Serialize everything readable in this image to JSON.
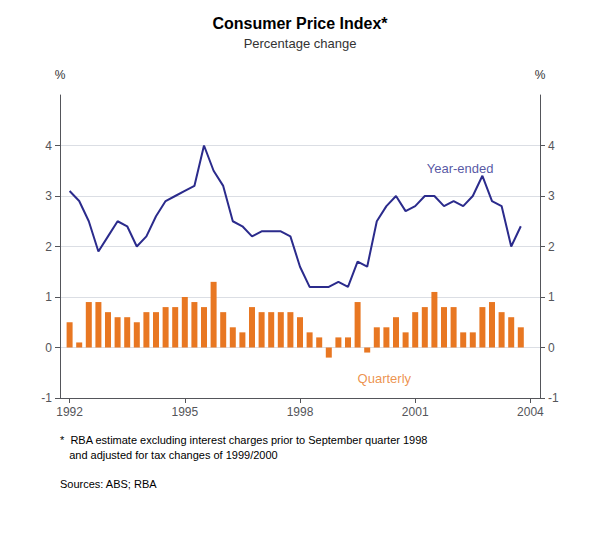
{
  "chart_data": {
    "type": "bar",
    "title": "Consumer Price Index*",
    "subtitle": "Percentage change",
    "footnote": "*  RBA estimate excluding interest charges prior to September quarter 1998\n   and adjusted for tax changes of 1999/2000",
    "sources": "Sources: ABS; RBA",
    "y_label": "%",
    "y2_label": "%",
    "xlim": [
      1991.75,
      2004.25
    ],
    "xticks": [
      1992,
      1995,
      1998,
      2001,
      2004
    ],
    "ylim": [
      -1,
      5
    ],
    "yticks": [
      -1,
      0,
      1,
      2,
      3,
      4
    ],
    "y2lim": [
      -1,
      5
    ],
    "y2ticks": [
      -1,
      0,
      1,
      2,
      3,
      4
    ],
    "grid": true,
    "x": [
      1992.0,
      1992.25,
      1992.5,
      1992.75,
      1993.0,
      1993.25,
      1993.5,
      1993.75,
      1994.0,
      1994.25,
      1994.5,
      1994.75,
      1995.0,
      1995.25,
      1995.5,
      1995.75,
      1996.0,
      1996.25,
      1996.5,
      1996.75,
      1997.0,
      1997.25,
      1997.5,
      1997.75,
      1998.0,
      1998.25,
      1998.5,
      1998.75,
      1999.0,
      1999.25,
      1999.5,
      1999.75,
      2000.0,
      2000.25,
      2000.5,
      2000.75,
      2001.0,
      2001.25,
      2001.5,
      2001.75,
      2002.0,
      2002.25,
      2002.5,
      2002.75,
      2003.0,
      2003.25,
      2003.5,
      2003.75
    ],
    "series": [
      {
        "type": "bar",
        "color": "#E87722",
        "values": [
          0.5,
          0.1,
          0.9,
          0.9,
          0.7,
          0.6,
          0.6,
          0.5,
          0.7,
          0.7,
          0.8,
          0.8,
          1.0,
          0.9,
          0.8,
          1.3,
          0.7,
          0.4,
          0.3,
          0.8,
          0.7,
          0.7,
          0.7,
          0.7,
          0.6,
          0.3,
          0.2,
          -0.2,
          0.2,
          0.2,
          0.9,
          -0.1,
          0.4,
          0.4,
          0.6,
          0.3,
          0.7,
          0.8,
          1.1,
          0.8,
          0.8,
          0.3,
          0.3,
          0.8,
          0.9,
          0.7,
          0.6,
          0.4
        ]
      },
      {
        "type": "line",
        "color": "#2B2B8C",
        "values": [
          3.1,
          2.9,
          2.5,
          1.9,
          2.2,
          2.5,
          2.4,
          2.0,
          2.2,
          2.6,
          2.9,
          3.0,
          3.1,
          3.2,
          4.0,
          3.5,
          3.2,
          2.5,
          2.4,
          2.2,
          2.3,
          2.3,
          2.3,
          2.2,
          1.6,
          1.2,
          1.2,
          1.2,
          1.3,
          1.2,
          1.7,
          1.6,
          2.5,
          2.8,
          3.0,
          2.7,
          2.8,
          3.0,
          3.0,
          2.8,
          2.9,
          2.8,
          3.0,
          3.4,
          2.9,
          2.8,
          2.0,
          2.4
        ]
      }
    ],
    "annotations": [
      {
        "text": "Year-ended",
        "x": 2001.3,
        "y": 3.55,
        "color": "#2B2B8C"
      },
      {
        "text": "Quarterly",
        "x": 1999.5,
        "y": -0.62,
        "color": "#E87722"
      }
    ]
  }
}
